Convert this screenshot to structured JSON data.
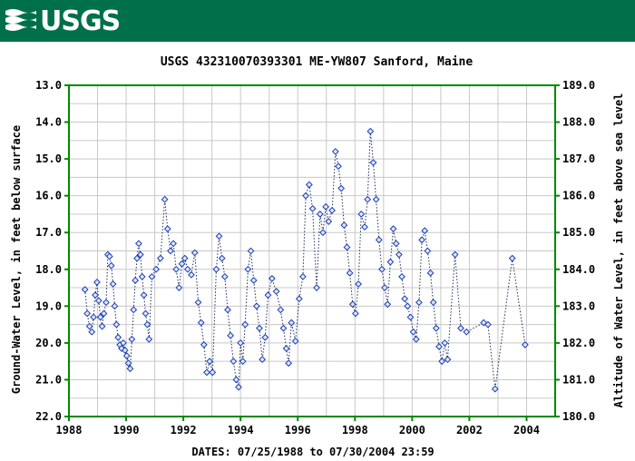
{
  "banner": {
    "logo_text": "USGS",
    "background": "#00704a"
  },
  "chart_data": {
    "type": "scatter",
    "title": "USGS 432310070393301 ME-YW807 Sanford, Maine",
    "xlabel": "DATES: 07/25/1988 to 07/30/2004 23:59",
    "ylabel": "Ground-Water Level, in feet below surface",
    "y2label": "Altitude of Water Level, in feet above sea level",
    "xlim": [
      1988,
      2005
    ],
    "ylim": [
      13.0,
      22.0
    ],
    "y_inverted": true,
    "y2lim": [
      189.0,
      180.0
    ],
    "x_ticks": [
      "1988",
      "1990",
      "1992",
      "1994",
      "1996",
      "1998",
      "2000",
      "2002",
      "2004"
    ],
    "y_ticks": [
      "13.0",
      "14.0",
      "15.0",
      "16.0",
      "17.0",
      "18.0",
      "19.0",
      "20.0",
      "21.0",
      "22.0"
    ],
    "y2_ticks": [
      "189.0",
      "188.0",
      "187.0",
      "186.0",
      "185.0",
      "184.0",
      "183.0",
      "182.0",
      "181.0",
      "180.0"
    ],
    "grid": true,
    "colors": {
      "frame": "#008800",
      "marker": "#1c3cb4",
      "marker_fill": "#dde8f8",
      "line": "#1a2c5a"
    },
    "series": [
      {
        "points": [
          [
            1988.56,
            18.55
          ],
          [
            1988.64,
            19.2
          ],
          [
            1988.72,
            19.55
          ],
          [
            1988.8,
            19.7
          ],
          [
            1988.86,
            19.3
          ],
          [
            1988.92,
            18.7
          ],
          [
            1988.98,
            18.35
          ],
          [
            1989.04,
            18.85
          ],
          [
            1989.1,
            19.3
          ],
          [
            1989.16,
            19.55
          ],
          [
            1989.22,
            19.2
          ],
          [
            1989.3,
            18.9
          ],
          [
            1989.36,
            17.6
          ],
          [
            1989.42,
            17.65
          ],
          [
            1989.48,
            17.9
          ],
          [
            1989.54,
            18.4
          ],
          [
            1989.6,
            19.0
          ],
          [
            1989.66,
            19.5
          ],
          [
            1989.72,
            19.85
          ],
          [
            1989.78,
            20.05
          ],
          [
            1989.84,
            20.15
          ],
          [
            1989.9,
            20.0
          ],
          [
            1989.96,
            20.2
          ],
          [
            1990.02,
            20.35
          ],
          [
            1990.08,
            20.55
          ],
          [
            1990.14,
            20.7
          ],
          [
            1990.2,
            19.9
          ],
          [
            1990.26,
            19.1
          ],
          [
            1990.32,
            18.3
          ],
          [
            1990.38,
            17.7
          ],
          [
            1990.44,
            17.3
          ],
          [
            1990.5,
            17.6
          ],
          [
            1990.56,
            18.2
          ],
          [
            1990.62,
            18.7
          ],
          [
            1990.68,
            19.2
          ],
          [
            1990.74,
            19.5
          ],
          [
            1990.8,
            19.9
          ],
          [
            1990.9,
            18.2
          ],
          [
            1991.05,
            18.0
          ],
          [
            1991.2,
            17.7
          ],
          [
            1991.35,
            16.1
          ],
          [
            1991.45,
            16.9
          ],
          [
            1991.55,
            17.5
          ],
          [
            1991.65,
            17.3
          ],
          [
            1991.75,
            18.0
          ],
          [
            1991.85,
            18.5
          ],
          [
            1991.95,
            17.85
          ],
          [
            1992.05,
            17.7
          ],
          [
            1992.15,
            18.0
          ],
          [
            1992.28,
            18.15
          ],
          [
            1992.4,
            17.55
          ],
          [
            1992.52,
            18.9
          ],
          [
            1992.62,
            19.45
          ],
          [
            1992.72,
            20.05
          ],
          [
            1992.82,
            20.8
          ],
          [
            1992.92,
            20.5
          ],
          [
            1993.02,
            20.8
          ],
          [
            1993.15,
            18.0
          ],
          [
            1993.25,
            17.1
          ],
          [
            1993.35,
            17.7
          ],
          [
            1993.45,
            18.2
          ],
          [
            1993.55,
            19.1
          ],
          [
            1993.65,
            19.8
          ],
          [
            1993.75,
            20.5
          ],
          [
            1993.85,
            21.0
          ],
          [
            1993.93,
            21.2
          ],
          [
            1994.0,
            20.0
          ],
          [
            1994.08,
            20.5
          ],
          [
            1994.16,
            19.5
          ],
          [
            1994.26,
            18.0
          ],
          [
            1994.36,
            17.5
          ],
          [
            1994.46,
            18.3
          ],
          [
            1994.56,
            19.0
          ],
          [
            1994.66,
            19.6
          ],
          [
            1994.76,
            20.45
          ],
          [
            1994.86,
            19.85
          ],
          [
            1994.96,
            18.7
          ],
          [
            1995.1,
            18.25
          ],
          [
            1995.25,
            18.6
          ],
          [
            1995.4,
            19.1
          ],
          [
            1995.5,
            19.6
          ],
          [
            1995.6,
            20.15
          ],
          [
            1995.68,
            20.55
          ],
          [
            1995.78,
            19.45
          ],
          [
            1995.92,
            19.95
          ],
          [
            1996.05,
            18.8
          ],
          [
            1996.18,
            18.2
          ],
          [
            1996.28,
            16.0
          ],
          [
            1996.4,
            15.7
          ],
          [
            1996.52,
            16.35
          ],
          [
            1996.66,
            18.5
          ],
          [
            1996.78,
            16.5
          ],
          [
            1996.88,
            17.0
          ],
          [
            1996.98,
            16.3
          ],
          [
            1997.08,
            16.7
          ],
          [
            1997.2,
            16.4
          ],
          [
            1997.32,
            14.8
          ],
          [
            1997.42,
            15.2
          ],
          [
            1997.52,
            15.8
          ],
          [
            1997.62,
            16.8
          ],
          [
            1997.72,
            17.4
          ],
          [
            1997.82,
            18.1
          ],
          [
            1997.92,
            18.95
          ],
          [
            1998.02,
            19.2
          ],
          [
            1998.12,
            18.4
          ],
          [
            1998.22,
            16.5
          ],
          [
            1998.34,
            16.85
          ],
          [
            1998.44,
            16.1
          ],
          [
            1998.54,
            14.25
          ],
          [
            1998.64,
            15.1
          ],
          [
            1998.74,
            16.1
          ],
          [
            1998.84,
            17.2
          ],
          [
            1998.94,
            18.0
          ],
          [
            1999.04,
            18.5
          ],
          [
            1999.14,
            18.95
          ],
          [
            1999.24,
            17.8
          ],
          [
            1999.34,
            16.9
          ],
          [
            1999.44,
            17.3
          ],
          [
            1999.54,
            17.6
          ],
          [
            1999.64,
            18.2
          ],
          [
            1999.74,
            18.8
          ],
          [
            1999.84,
            19.0
          ],
          [
            1999.94,
            19.3
          ],
          [
            2000.04,
            19.7
          ],
          [
            2000.14,
            19.9
          ],
          [
            2000.24,
            18.9
          ],
          [
            2000.34,
            17.2
          ],
          [
            2000.44,
            16.95
          ],
          [
            2000.54,
            17.5
          ],
          [
            2000.64,
            18.1
          ],
          [
            2000.74,
            18.9
          ],
          [
            2000.84,
            19.6
          ],
          [
            2000.94,
            20.1
          ],
          [
            2001.04,
            20.5
          ],
          [
            2001.14,
            20.0
          ],
          [
            2001.24,
            20.45
          ],
          [
            2001.5,
            17.6
          ],
          [
            2001.7,
            19.6
          ],
          [
            2001.9,
            19.7
          ],
          [
            2002.5,
            19.45
          ],
          [
            2002.65,
            19.5
          ],
          [
            2002.9,
            21.25
          ],
          [
            2003.5,
            17.7
          ],
          [
            2003.95,
            20.05
          ]
        ]
      }
    ]
  }
}
